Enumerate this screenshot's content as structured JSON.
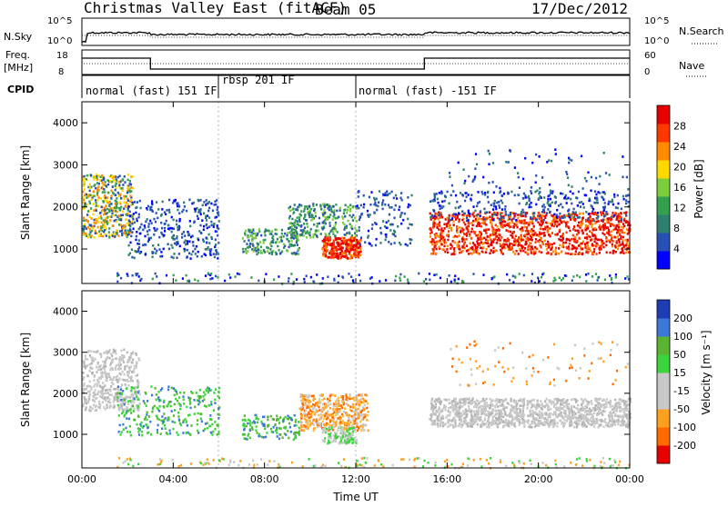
{
  "header": {
    "title": "Christmas Valley East (fitACF)",
    "beam": "Beam 05",
    "date": "17/Dec/2012"
  },
  "chart_data": [
    {
      "type": "line",
      "name": "noise-panel",
      "left_label": "N.Sky",
      "right_label": "N.Search",
      "left_ticks": [
        "10^5",
        "10^0"
      ],
      "right_ticks": [
        "10^5",
        "10^0"
      ],
      "x_range_hours": [
        0,
        24
      ]
    },
    {
      "type": "line",
      "name": "frequency-panel",
      "ylabel_line1": "Freq.",
      "ylabel_line2": "[MHz]",
      "left_ticks": [
        "18",
        "8"
      ],
      "right_label": "Nave",
      "right_ticks": [
        "60",
        "0"
      ],
      "freq_steps": [
        {
          "start_h": 0,
          "end_h": 3.0,
          "mhz": 16
        },
        {
          "start_h": 3.0,
          "end_h": 15.0,
          "mhz": 10
        },
        {
          "start_h": 15.0,
          "end_h": 24,
          "mhz": 16
        }
      ]
    },
    {
      "type": "table",
      "name": "cpid-panel",
      "label": "CPID",
      "segments": [
        {
          "start_h": 0,
          "end_h": 6.0,
          "text": "normal (fast) 151 IF"
        },
        {
          "start_h": 6.0,
          "end_h": 12.0,
          "text": "rbsp 201 IF"
        },
        {
          "start_h": 12.0,
          "end_h": 24,
          "text": "normal (fast) -151 IF"
        }
      ]
    },
    {
      "type": "heatmap",
      "name": "power",
      "ylabel": "Slant Range [km]",
      "yticks": [
        1000,
        2000,
        3000,
        4000
      ],
      "ylim": [
        180,
        4500
      ],
      "xlim": [
        0,
        24
      ],
      "colorbar_label": "Power [dB]",
      "colorbar_ticks": [
        "28",
        "24",
        "20",
        "16",
        "12",
        "8",
        "4"
      ],
      "colorbar_colors": [
        "#0000ff",
        "#2850b4",
        "#2f7f6e",
        "#33a050",
        "#7ccd3c",
        "#ffd800",
        "#ff8c00",
        "#ff3800",
        "#e60000"
      ]
    },
    {
      "type": "heatmap",
      "name": "velocity",
      "ylabel": "Slant Range [km]",
      "yticks": [
        1000,
        2000,
        3000,
        4000
      ],
      "ylim": [
        180,
        4500
      ],
      "xlim": [
        0,
        24
      ],
      "xlabel": "Time UT",
      "xticks": [
        "00:00",
        "04:00",
        "08:00",
        "12:00",
        "16:00",
        "20:00",
        "00:00"
      ],
      "colorbar_label": "Velocity [m s⁻¹]",
      "colorbar_ticks": [
        "200",
        "100",
        "50",
        "15",
        "-15",
        "-50",
        "-100",
        "-200"
      ],
      "colorbar_colors": [
        "#e60000",
        "#ff6a00",
        "#ff9f20",
        "#c8c8c8",
        "#c8c8c8",
        "#3cd43c",
        "#5ab432",
        "#3c78d8",
        "#1e3cb4"
      ]
    }
  ]
}
